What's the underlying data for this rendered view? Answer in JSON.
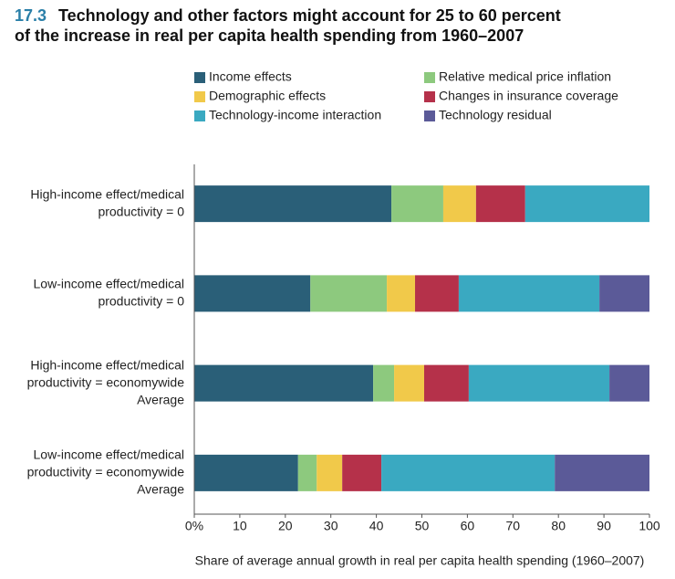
{
  "chart_data": {
    "type": "stacked-bar-horizontal",
    "figure_number": "17.3",
    "title": [
      "Technology and other factors might account for 25 to 60 percent",
      "of the increase in real per capita health spending from 1960–2007"
    ],
    "x_label": "Share of average annual growth in real per capita health spending (1960–2007)",
    "categories": [
      [
        "High-income effect/medical",
        "productivity = 0"
      ],
      [
        "Low-income effect/medical",
        "productivity = 0"
      ],
      [
        "High-income effect/medical",
        "productivity = economywide",
        "Average"
      ],
      [
        "Low-income effect/medical",
        "productivity = economywide",
        "Average"
      ]
    ],
    "series": [
      {
        "name": "Income effects",
        "color": "#2a5f78",
        "values": [
          43.3,
          25.5,
          39.3,
          22.8
        ]
      },
      {
        "name": "Relative medical price inflation",
        "color": "#8dc97e",
        "values": [
          11.4,
          16.8,
          4.6,
          4.1
        ]
      },
      {
        "name": "Demographic effects",
        "color": "#f1c94a",
        "values": [
          7.2,
          6.2,
          6.6,
          5.6
        ]
      },
      {
        "name": "Changes in insurance coverage",
        "color": "#b5314a",
        "values": [
          10.8,
          9.6,
          9.8,
          8.6
        ]
      },
      {
        "name": "Technology-income interaction",
        "color": "#3aa9c1",
        "values": [
          27.3,
          30.9,
          30.9,
          38.1
        ]
      },
      {
        "name": "Technology residual",
        "color": "#5b5a98",
        "values": [
          0,
          11.0,
          8.8,
          20.8
        ]
      }
    ],
    "xlim": [
      0,
      100
    ],
    "xticks": [
      {
        "value": 0,
        "label": "0%"
      },
      10,
      20,
      30,
      40,
      50,
      60,
      70,
      80,
      90,
      100
    ]
  }
}
